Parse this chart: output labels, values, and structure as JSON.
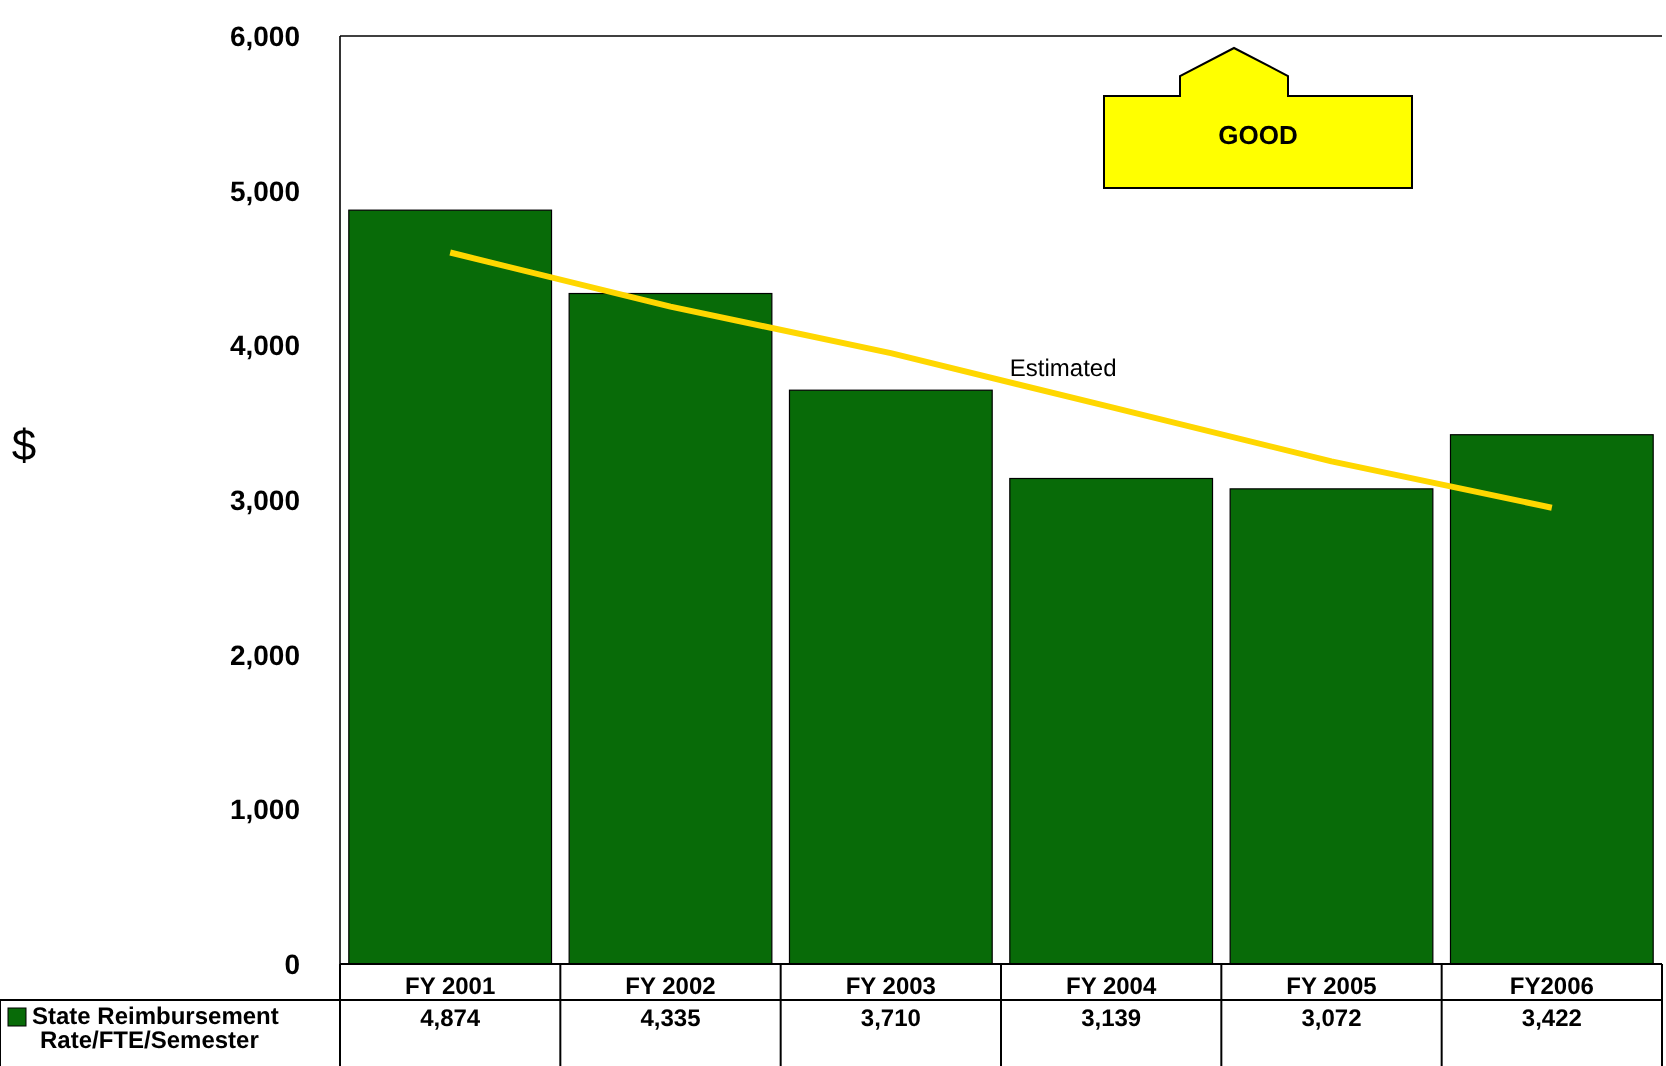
{
  "chart_data": {
    "type": "bar",
    "ylabel": "$",
    "categories": [
      "FY 2001",
      "FY 2002",
      "FY 2003",
      "FY 2004",
      "FY 2005",
      "FY2006"
    ],
    "series": [
      {
        "name": "State Reimbursement Rate/FTE/Semester",
        "color": "#086b08",
        "values": [
          4874,
          4335,
          3710,
          3139,
          3072,
          3422
        ],
        "value_labels": [
          "4,874",
          "4,335",
          "3,710",
          "3,139",
          "3,072",
          "3,422"
        ]
      },
      {
        "type": "line",
        "color": "#ffd700",
        "values": [
          4600,
          4250,
          3950,
          3600,
          3250,
          2950
        ]
      }
    ],
    "ylim": [
      0,
      6000
    ],
    "yticks": [
      {
        "value": 0,
        "label": "0"
      },
      {
        "value": 1000,
        "label": "1,000"
      },
      {
        "value": 2000,
        "label": "2,000"
      },
      {
        "value": 3000,
        "label": "3,000"
      },
      {
        "value": 4000,
        "label": "4,000"
      },
      {
        "value": 5000,
        "label": "5,000"
      },
      {
        "value": 6000,
        "label": "6,000"
      }
    ],
    "legend": "bottom left",
    "annotations": [
      "GOOD",
      "Estimated"
    ]
  }
}
